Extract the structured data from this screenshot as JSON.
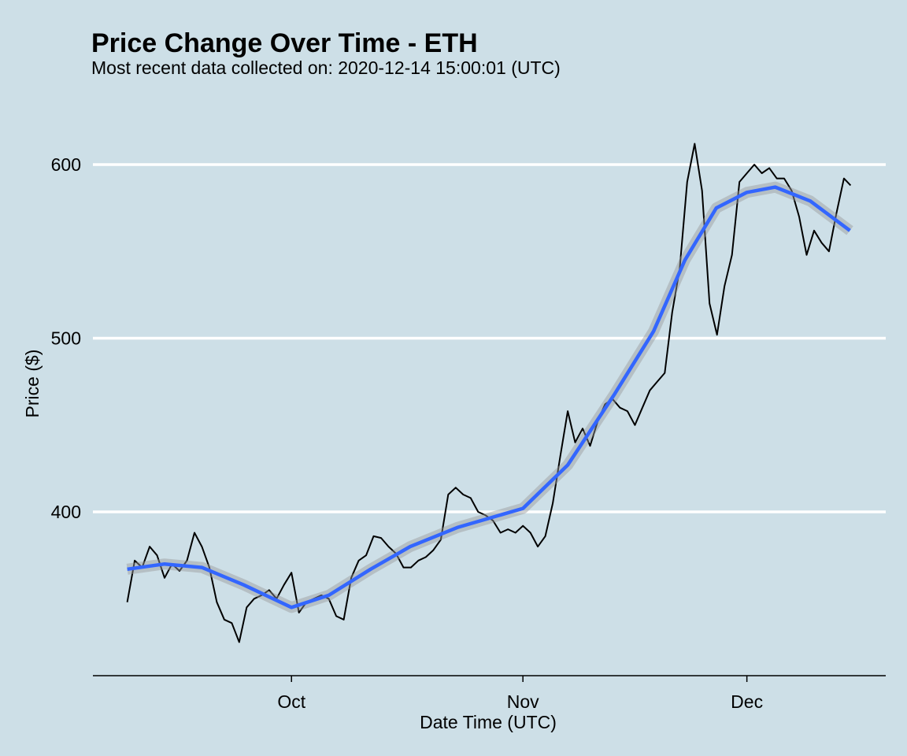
{
  "chart_data": {
    "type": "line",
    "title": "Price Change Over Time - ETH",
    "subtitle": "Most recent data collected on: 2020-12-14 15:00:01 (UTC)",
    "x_label": "Date Time (UTC)",
    "y_label": "Price ($)",
    "xlim": [
      248.4,
      354.6
    ],
    "xticks": [
      {
        "value": 275,
        "label": "Oct"
      },
      {
        "value": 306,
        "label": "Nov"
      },
      {
        "value": 336,
        "label": "Dec"
      }
    ],
    "ylim": [
      305.7,
      633
    ],
    "yticks": [
      400,
      500,
      600
    ],
    "grid": true,
    "series": [
      {
        "color": "#000000",
        "x": [
          253,
          254,
          255,
          256,
          257,
          258,
          259,
          260,
          261,
          262,
          263,
          264,
          265,
          266,
          267,
          268,
          269,
          270,
          271,
          272,
          273,
          274,
          275,
          276,
          277,
          278,
          279,
          280,
          281,
          282,
          283,
          284,
          285,
          286,
          287,
          288,
          289,
          290,
          291,
          292,
          293,
          294,
          295,
          296,
          297,
          298,
          299,
          300,
          301,
          302,
          303,
          304,
          305,
          306,
          307,
          308,
          309,
          310,
          311,
          312,
          313,
          314,
          315,
          316,
          317,
          318,
          319,
          320,
          321,
          322,
          323,
          324,
          325,
          326,
          327,
          328,
          329,
          330,
          331,
          332,
          333,
          334,
          335,
          336,
          337,
          338,
          339,
          340,
          341,
          342,
          343,
          344,
          345,
          346,
          347,
          348,
          349,
          349.9
        ],
        "values": [
          348,
          372,
          368,
          380,
          375,
          362,
          370,
          366,
          372,
          388,
          380,
          368,
          348,
          338,
          336,
          325,
          345,
          350,
          352,
          355,
          350,
          358,
          365,
          342,
          348,
          350,
          352,
          350,
          340,
          338,
          362,
          372,
          375,
          386,
          385,
          380,
          376,
          368,
          368,
          372,
          374,
          378,
          384,
          410,
          414,
          410,
          408,
          400,
          398,
          395,
          388,
          390,
          388,
          392,
          388,
          380,
          386,
          405,
          432,
          458,
          440,
          448,
          438,
          452,
          462,
          465,
          460,
          458,
          450,
          460,
          470,
          475,
          480,
          515,
          540,
          590,
          612,
          585,
          520,
          502,
          530,
          548,
          590,
          595,
          600,
          595,
          598,
          592,
          592,
          585,
          570,
          548,
          562,
          555,
          550,
          572,
          592,
          588
        ]
      },
      {
        "color": "#3366ff",
        "x": [
          253,
          258,
          263,
          268.6,
          275,
          280,
          285.6,
          290.9,
          297.2,
          306,
          312,
          318.3,
          323.5,
          327.7,
          331.9,
          336,
          339.8,
          344.5,
          349.8
        ],
        "values": [
          367,
          370,
          368,
          358,
          345,
          352,
          367,
          380,
          391,
          402,
          427,
          468,
          504,
          545,
          575,
          584,
          587,
          579,
          562
        ]
      }
    ]
  }
}
